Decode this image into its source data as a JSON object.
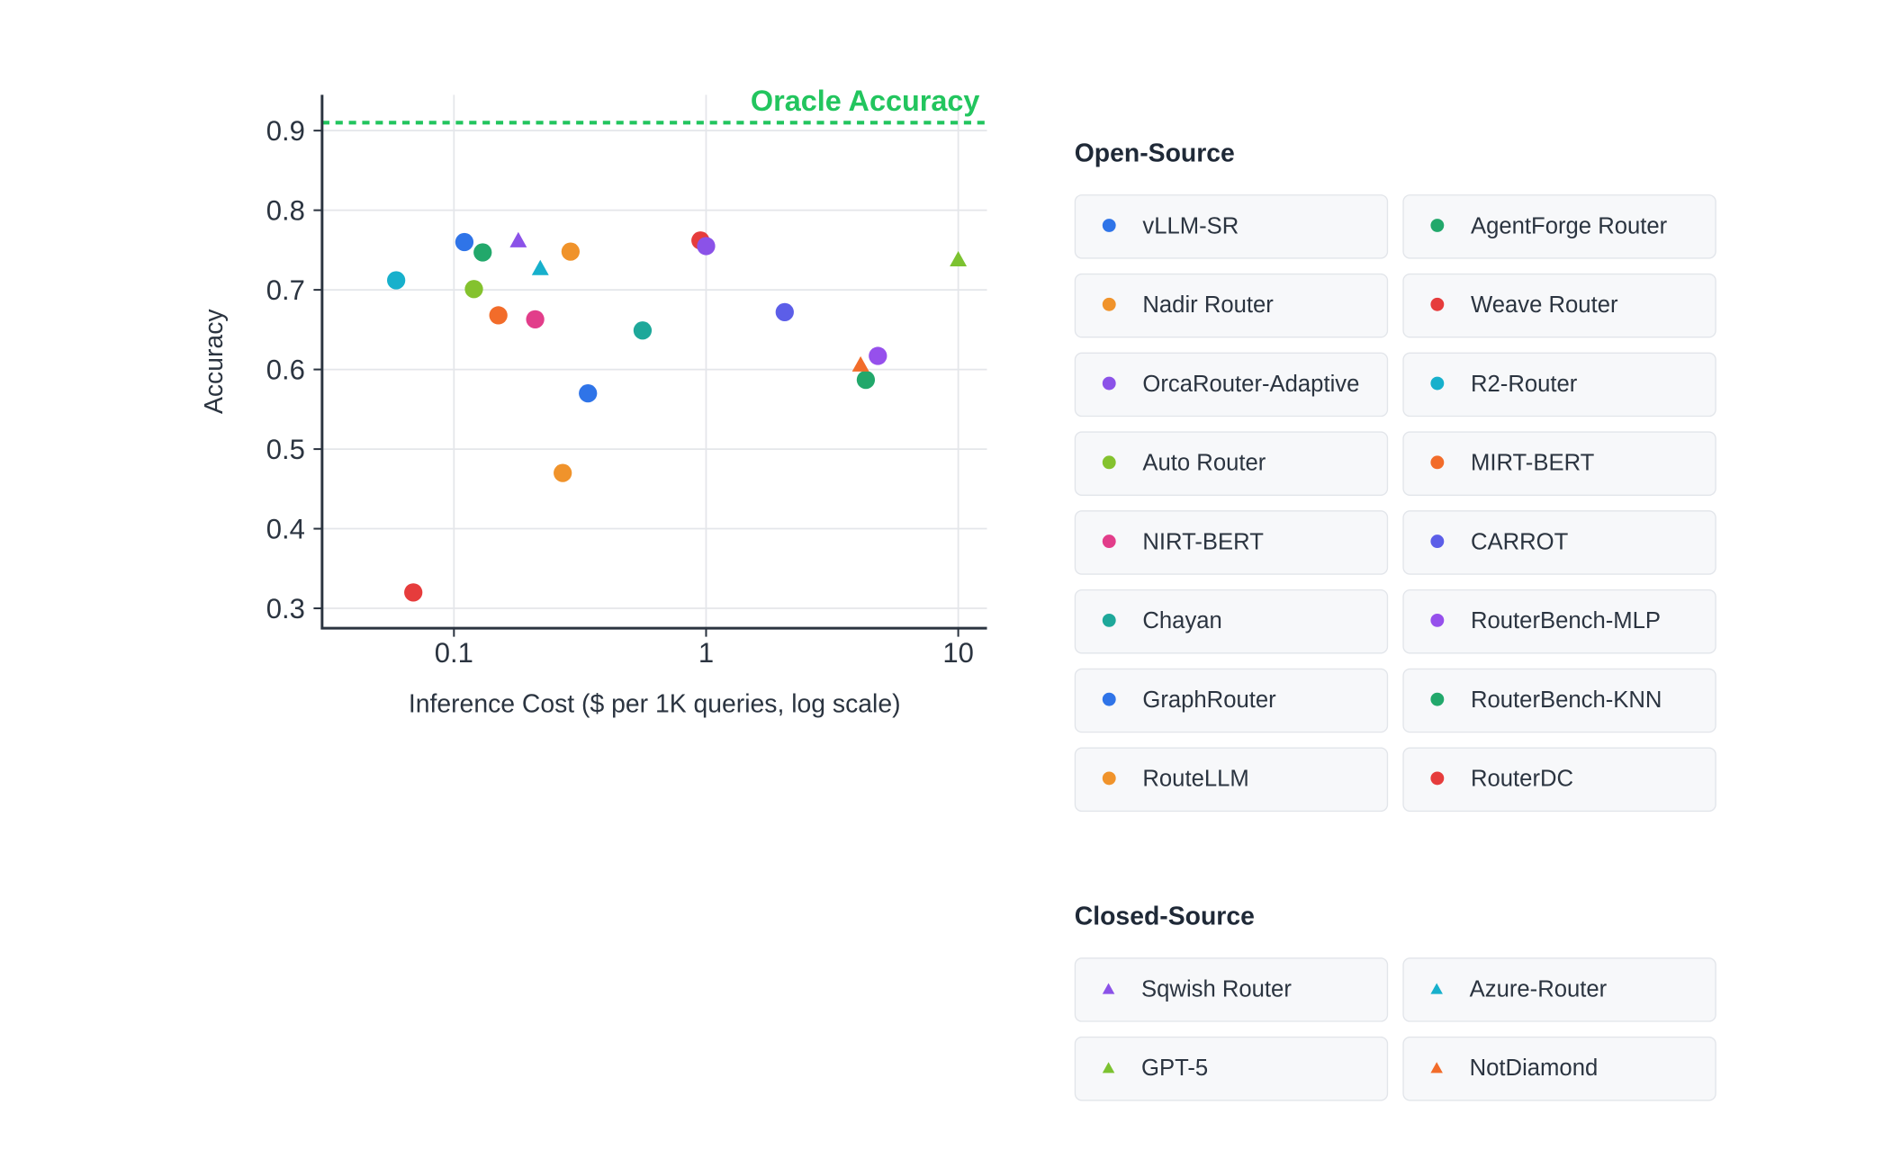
{
  "chart_data": {
    "type": "scatter",
    "xlabel": "Inference Cost ($ per 1K queries, log scale)",
    "ylabel": "Accuracy",
    "x_scale": "log",
    "xlim": [
      0.03,
      13
    ],
    "ylim": [
      0.275,
      0.945
    ],
    "x_ticks": [
      {
        "value": 0.1,
        "label": "0.1"
      },
      {
        "value": 1,
        "label": "1"
      },
      {
        "value": 10,
        "label": "10"
      }
    ],
    "y_ticks": [
      {
        "value": 0.3,
        "label": "0.3"
      },
      {
        "value": 0.4,
        "label": "0.4"
      },
      {
        "value": 0.5,
        "label": "0.5"
      },
      {
        "value": 0.6,
        "label": "0.6"
      },
      {
        "value": 0.7,
        "label": "0.7"
      },
      {
        "value": 0.8,
        "label": "0.8"
      },
      {
        "value": 0.9,
        "label": "0.9"
      }
    ],
    "grid": true,
    "reference_line": {
      "label": "Oracle Accuracy",
      "y": 0.91,
      "color": "#22c55e"
    },
    "series": [
      {
        "name": "vLLM-SR",
        "group": "open",
        "marker": "circle",
        "color": "#2f74e8",
        "points": [
          {
            "x": 0.11,
            "y": 0.76
          }
        ]
      },
      {
        "name": "AgentForge Router",
        "group": "open",
        "marker": "circle",
        "color": "#22a86b",
        "points": [
          {
            "x": 0.13,
            "y": 0.747
          }
        ]
      },
      {
        "name": "Nadir Router",
        "group": "open",
        "marker": "circle",
        "color": "#f0932b",
        "points": [
          {
            "x": 0.29,
            "y": 0.748
          }
        ]
      },
      {
        "name": "Weave Router",
        "group": "open",
        "marker": "circle",
        "color": "#e63c3c",
        "points": [
          {
            "x": 0.95,
            "y": 0.762
          }
        ]
      },
      {
        "name": "OrcaRouter-Adaptive",
        "group": "open",
        "marker": "circle",
        "color": "#8b52e8",
        "points": [
          {
            "x": 1.0,
            "y": 0.755
          }
        ]
      },
      {
        "name": "R2-Router",
        "group": "open",
        "marker": "circle",
        "color": "#17b0cc",
        "points": [
          {
            "x": 0.059,
            "y": 0.712
          }
        ]
      },
      {
        "name": "Auto Router",
        "group": "open",
        "marker": "circle",
        "color": "#84c22e",
        "points": [
          {
            "x": 0.12,
            "y": 0.701
          }
        ]
      },
      {
        "name": "MIRT-BERT",
        "group": "open",
        "marker": "circle",
        "color": "#f26c2a",
        "points": [
          {
            "x": 0.15,
            "y": 0.668
          }
        ]
      },
      {
        "name": "NIRT-BERT",
        "group": "open",
        "marker": "circle",
        "color": "#e23d8a",
        "points": [
          {
            "x": 0.21,
            "y": 0.663
          }
        ]
      },
      {
        "name": "CARROT",
        "group": "open",
        "marker": "circle",
        "color": "#5c5ee8",
        "points": [
          {
            "x": 2.05,
            "y": 0.672
          }
        ]
      },
      {
        "name": "Chayan",
        "group": "open",
        "marker": "circle",
        "color": "#1ea89a",
        "points": [
          {
            "x": 0.56,
            "y": 0.649
          }
        ]
      },
      {
        "name": "RouterBench-MLP",
        "group": "open",
        "marker": "circle",
        "color": "#9650ec",
        "points": [
          {
            "x": 4.8,
            "y": 0.617
          }
        ]
      },
      {
        "name": "GraphRouter",
        "group": "open",
        "marker": "circle",
        "color": "#2f74e8",
        "points": [
          {
            "x": 0.34,
            "y": 0.57
          }
        ]
      },
      {
        "name": "RouterBench-KNN",
        "group": "open",
        "marker": "circle",
        "color": "#22a86b",
        "points": [
          {
            "x": 4.3,
            "y": 0.587
          }
        ]
      },
      {
        "name": "RouteLLM",
        "group": "open",
        "marker": "circle",
        "color": "#f0932b",
        "points": [
          {
            "x": 0.27,
            "y": 0.47
          }
        ]
      },
      {
        "name": "RouterDC",
        "group": "open",
        "marker": "circle",
        "color": "#e63c3c",
        "points": [
          {
            "x": 0.069,
            "y": 0.32
          }
        ]
      },
      {
        "name": "Sqwish Router",
        "group": "closed",
        "marker": "triangle",
        "color": "#8b52e8",
        "points": [
          {
            "x": 0.18,
            "y": 0.762
          }
        ]
      },
      {
        "name": "Azure-Router",
        "group": "closed",
        "marker": "triangle",
        "color": "#17b0cc",
        "points": [
          {
            "x": 0.22,
            "y": 0.727
          }
        ]
      },
      {
        "name": "GPT-5",
        "group": "closed",
        "marker": "triangle",
        "color": "#7cc230",
        "points": [
          {
            "x": 10.0,
            "y": 0.738
          }
        ]
      },
      {
        "name": "NotDiamond",
        "group": "closed",
        "marker": "triangle",
        "color": "#f26c2a",
        "points": [
          {
            "x": 4.1,
            "y": 0.606
          }
        ]
      }
    ]
  },
  "legend": {
    "open_title": "Open-Source",
    "closed_title": "Closed-Source",
    "open": [
      {
        "label": "vLLM-SR",
        "color": "#2f74e8",
        "marker": "circle"
      },
      {
        "label": "AgentForge Router",
        "color": "#22a86b",
        "marker": "circle"
      },
      {
        "label": "Nadir Router",
        "color": "#f0932b",
        "marker": "circle"
      },
      {
        "label": "Weave Router",
        "color": "#e63c3c",
        "marker": "circle"
      },
      {
        "label": "OrcaRouter-Adaptive",
        "color": "#8b52e8",
        "marker": "circle"
      },
      {
        "label": "R2-Router",
        "color": "#17b0cc",
        "marker": "circle"
      },
      {
        "label": "Auto Router",
        "color": "#84c22e",
        "marker": "circle"
      },
      {
        "label": "MIRT-BERT",
        "color": "#f26c2a",
        "marker": "circle"
      },
      {
        "label": "NIRT-BERT",
        "color": "#e23d8a",
        "marker": "circle"
      },
      {
        "label": "CARROT",
        "color": "#5c5ee8",
        "marker": "circle"
      },
      {
        "label": "Chayan",
        "color": "#1ea89a",
        "marker": "circle"
      },
      {
        "label": "RouterBench-MLP",
        "color": "#9650ec",
        "marker": "circle"
      },
      {
        "label": "GraphRouter",
        "color": "#2f74e8",
        "marker": "circle"
      },
      {
        "label": "RouterBench-KNN",
        "color": "#22a86b",
        "marker": "circle"
      },
      {
        "label": "RouteLLM",
        "color": "#f0932b",
        "marker": "circle"
      },
      {
        "label": "RouterDC",
        "color": "#e63c3c",
        "marker": "circle"
      }
    ],
    "closed": [
      {
        "label": "Sqwish Router",
        "color": "#8b52e8",
        "marker": "triangle"
      },
      {
        "label": "Azure-Router",
        "color": "#17b0cc",
        "marker": "triangle"
      },
      {
        "label": "GPT-5",
        "color": "#7cc230",
        "marker": "triangle"
      },
      {
        "label": "NotDiamond",
        "color": "#f26c2a",
        "marker": "triangle"
      }
    ]
  }
}
